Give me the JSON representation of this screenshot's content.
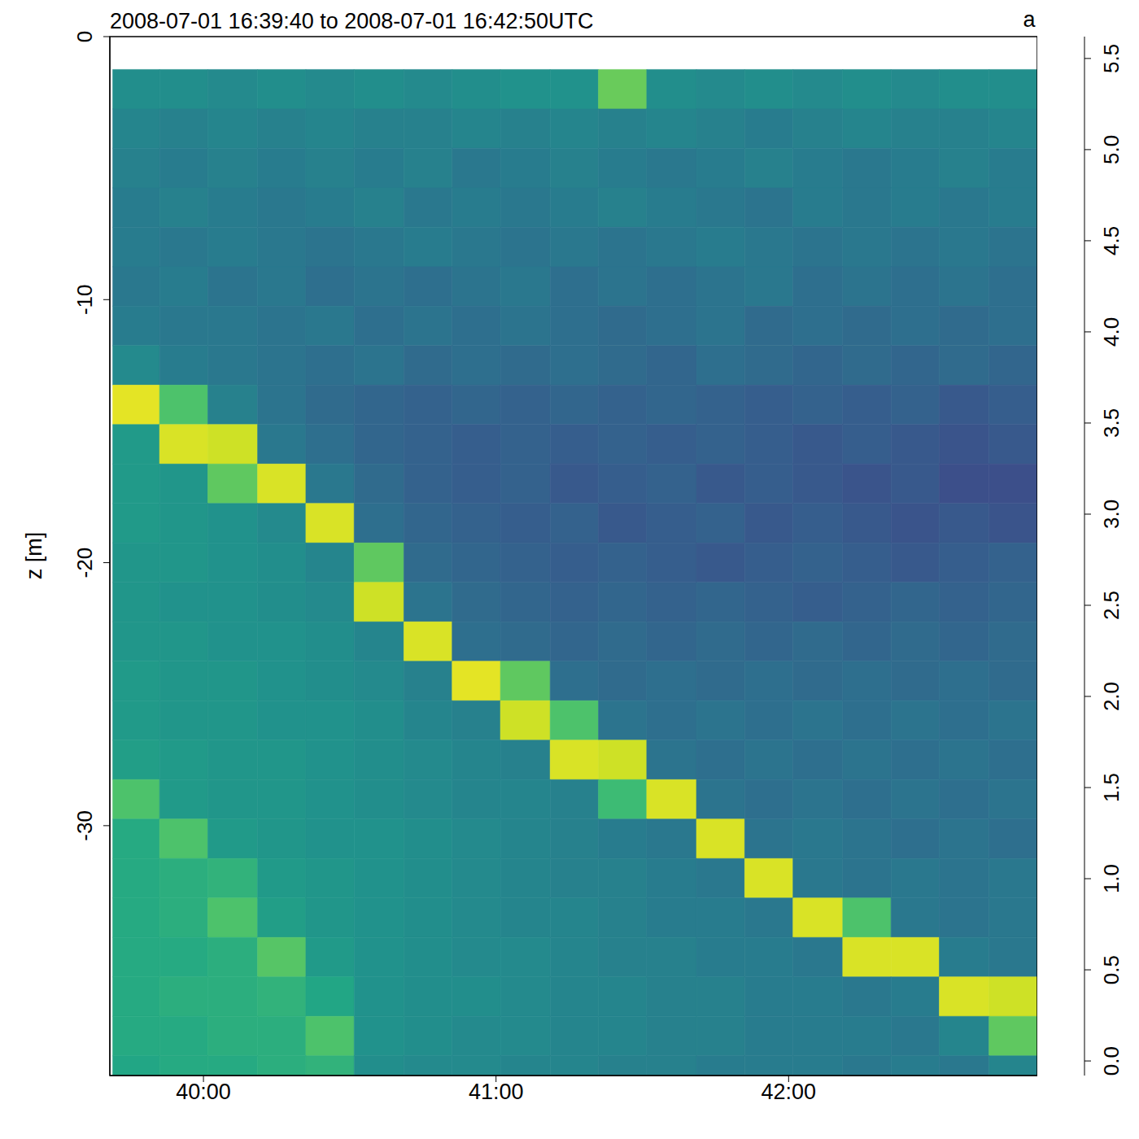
{
  "chart_data": {
    "type": "heatmap",
    "title": "2008-07-01 16:39:40 to 2008-07-01 16:42:50UTC",
    "ylabel": "z [m]",
    "x": [
      39.77,
      39.93,
      40.1,
      40.27,
      40.43,
      40.6,
      40.77,
      40.93,
      41.1,
      41.27,
      41.43,
      41.6,
      41.77,
      41.93,
      42.1,
      42.27,
      42.43,
      42.6,
      42.77
    ],
    "y": [
      -2,
      -3.5,
      -5,
      -6.5,
      -8,
      -9.5,
      -11,
      -12.5,
      -14,
      -15.5,
      -17,
      -18.5,
      -20,
      -21.5,
      -23,
      -24.5,
      -26,
      -27.5,
      -29,
      -30.5,
      -32,
      -33.5,
      -35,
      -36.5,
      -38,
      -39.5
    ],
    "values": [
      [
        2.7,
        2.7,
        2.6,
        2.7,
        2.6,
        2.7,
        2.6,
        2.7,
        2.8,
        2.8,
        4.3,
        2.7,
        2.6,
        2.7,
        2.6,
        2.7,
        2.6,
        2.7,
        2.7
      ],
      [
        2.5,
        2.4,
        2.5,
        2.4,
        2.5,
        2.4,
        2.4,
        2.5,
        2.4,
        2.5,
        2.4,
        2.5,
        2.4,
        2.3,
        2.4,
        2.5,
        2.4,
        2.4,
        2.5
      ],
      [
        2.4,
        2.3,
        2.4,
        2.3,
        2.4,
        2.3,
        2.4,
        2.2,
        2.3,
        2.4,
        2.3,
        2.2,
        2.3,
        2.4,
        2.3,
        2.2,
        2.3,
        2.4,
        2.3
      ],
      [
        2.3,
        2.4,
        2.3,
        2.2,
        2.3,
        2.4,
        2.2,
        2.3,
        2.2,
        2.3,
        2.4,
        2.3,
        2.2,
        2.1,
        2.3,
        2.2,
        2.3,
        2.2,
        2.3
      ],
      [
        2.3,
        2.2,
        2.3,
        2.2,
        2.1,
        2.2,
        2.3,
        2.2,
        2.1,
        2.2,
        2.1,
        2.2,
        2.3,
        2.2,
        2.1,
        2.2,
        2.1,
        2.2,
        2.1
      ],
      [
        2.2,
        2.3,
        2.1,
        2.2,
        2.0,
        2.1,
        2.0,
        2.1,
        2.2,
        2.0,
        2.1,
        2.0,
        2.1,
        2.2,
        2.0,
        2.1,
        2.0,
        2.1,
        2.0
      ],
      [
        2.3,
        2.2,
        2.2,
        2.1,
        2.2,
        2.0,
        2.1,
        2.0,
        2.1,
        2.0,
        1.9,
        2.0,
        2.1,
        1.9,
        2.0,
        1.9,
        2.0,
        1.9,
        2.0
      ],
      [
        2.6,
        2.3,
        2.2,
        2.1,
        2.0,
        2.1,
        1.9,
        2.0,
        1.9,
        2.0,
        1.9,
        1.8,
        2.0,
        1.9,
        1.8,
        1.9,
        1.8,
        1.9,
        1.8
      ],
      [
        5.4,
        4.0,
        2.4,
        2.1,
        1.9,
        1.8,
        1.7,
        1.8,
        1.7,
        1.8,
        1.7,
        1.8,
        1.7,
        1.6,
        1.7,
        1.6,
        1.7,
        1.5,
        1.6
      ],
      [
        3.0,
        5.3,
        5.2,
        2.2,
        2.0,
        1.8,
        1.7,
        1.6,
        1.7,
        1.6,
        1.7,
        1.6,
        1.7,
        1.6,
        1.5,
        1.6,
        1.5,
        1.4,
        1.5
      ],
      [
        3.0,
        2.9,
        4.2,
        5.3,
        2.2,
        1.9,
        1.7,
        1.6,
        1.7,
        1.5,
        1.6,
        1.7,
        1.5,
        1.6,
        1.5,
        1.4,
        1.5,
        1.3,
        1.3
      ],
      [
        3.0,
        2.9,
        2.8,
        2.6,
        5.3,
        2.0,
        1.8,
        1.7,
        1.6,
        1.7,
        1.5,
        1.6,
        1.7,
        1.5,
        1.6,
        1.5,
        1.4,
        1.5,
        1.4
      ],
      [
        2.9,
        2.9,
        2.8,
        2.7,
        2.5,
        4.2,
        1.9,
        1.8,
        1.7,
        1.6,
        1.7,
        1.6,
        1.5,
        1.6,
        1.7,
        1.6,
        1.5,
        1.6,
        1.7
      ],
      [
        2.9,
        2.8,
        2.8,
        2.7,
        2.6,
        5.2,
        2.1,
        1.9,
        1.8,
        1.7,
        1.8,
        1.7,
        1.8,
        1.7,
        1.6,
        1.7,
        1.8,
        1.7,
        1.8
      ],
      [
        2.9,
        2.9,
        2.8,
        2.8,
        2.7,
        2.5,
        5.3,
        2.0,
        1.9,
        1.8,
        1.9,
        1.8,
        1.9,
        1.8,
        1.9,
        1.8,
        1.9,
        1.8,
        1.9
      ],
      [
        3.0,
        2.9,
        2.9,
        2.8,
        2.7,
        2.6,
        2.4,
        5.4,
        4.2,
        2.0,
        1.9,
        2.0,
        1.9,
        2.0,
        1.9,
        2.0,
        1.9,
        2.0,
        1.9
      ],
      [
        3.0,
        2.9,
        2.9,
        2.8,
        2.8,
        2.7,
        2.5,
        2.4,
        5.2,
        4.0,
        2.1,
        2.0,
        2.1,
        2.0,
        2.1,
        2.0,
        2.1,
        2.0,
        2.1
      ],
      [
        3.1,
        3.0,
        2.9,
        2.9,
        2.8,
        2.7,
        2.6,
        2.5,
        2.4,
        5.3,
        5.2,
        2.1,
        2.0,
        2.1,
        2.0,
        2.1,
        2.0,
        2.1,
        2.0
      ],
      [
        4.0,
        3.0,
        2.9,
        2.9,
        2.8,
        2.7,
        2.6,
        2.5,
        2.5,
        2.4,
        3.8,
        5.3,
        2.1,
        2.0,
        2.1,
        2.0,
        2.1,
        2.0,
        2.1
      ],
      [
        3.4,
        4.0,
        3.0,
        2.9,
        2.8,
        2.8,
        2.7,
        2.6,
        2.5,
        2.4,
        2.3,
        2.2,
        5.3,
        2.1,
        2.2,
        2.1,
        2.0,
        2.1,
        2.0
      ],
      [
        3.4,
        3.5,
        3.6,
        3.0,
        2.9,
        2.8,
        2.7,
        2.6,
        2.5,
        2.4,
        2.4,
        2.3,
        2.2,
        5.3,
        2.2,
        2.1,
        2.2,
        2.1,
        2.2
      ],
      [
        3.4,
        3.5,
        4.0,
        3.1,
        2.9,
        2.8,
        2.7,
        2.6,
        2.5,
        2.5,
        2.4,
        2.3,
        2.3,
        2.2,
        5.3,
        4.0,
        2.2,
        2.1,
        2.2
      ],
      [
        3.4,
        3.4,
        3.5,
        4.1,
        3.0,
        2.8,
        2.7,
        2.6,
        2.6,
        2.5,
        2.4,
        2.4,
        2.3,
        2.3,
        2.2,
        5.3,
        5.3,
        2.3,
        2.2
      ],
      [
        3.4,
        3.5,
        3.5,
        3.6,
        3.3,
        2.8,
        2.7,
        2.7,
        2.6,
        2.5,
        2.5,
        2.4,
        2.4,
        2.3,
        2.3,
        2.2,
        2.3,
        5.3,
        5.2
      ],
      [
        3.4,
        3.4,
        3.5,
        3.5,
        4.0,
        2.8,
        2.7,
        2.6,
        2.6,
        2.5,
        2.5,
        2.4,
        2.4,
        2.3,
        2.3,
        2.3,
        2.2,
        2.5,
        4.2
      ],
      [
        3.3,
        3.4,
        3.4,
        3.5,
        3.6,
        2.7,
        2.6,
        2.6,
        2.5,
        2.5,
        2.4,
        2.4,
        2.3,
        2.3,
        2.3,
        2.2,
        2.3,
        2.2,
        2.5
      ]
    ],
    "xlim": [
      39.68,
      42.85
    ],
    "xticks": [
      {
        "value": 40,
        "label": "40:00"
      },
      {
        "value": 41,
        "label": "41:00"
      },
      {
        "value": 42,
        "label": "42:00"
      }
    ],
    "ylim": [
      -39.5,
      0
    ],
    "yticks": [
      0,
      -10,
      -20,
      -30
    ],
    "colorbar": {
      "label": "a",
      "range": [
        -0.08,
        5.62
      ],
      "ticks": [
        {
          "value": 0,
          "label": "0.0"
        },
        0.5,
        {
          "value": 1,
          "label": "1.0"
        },
        1.5,
        {
          "value": 2,
          "label": "2.0"
        },
        2.5,
        {
          "value": 3,
          "label": "3.0"
        },
        3.5,
        {
          "value": 4,
          "label": "4.0"
        },
        4.5,
        {
          "value": 5,
          "label": "5.0"
        },
        5.5
      ]
    }
  }
}
